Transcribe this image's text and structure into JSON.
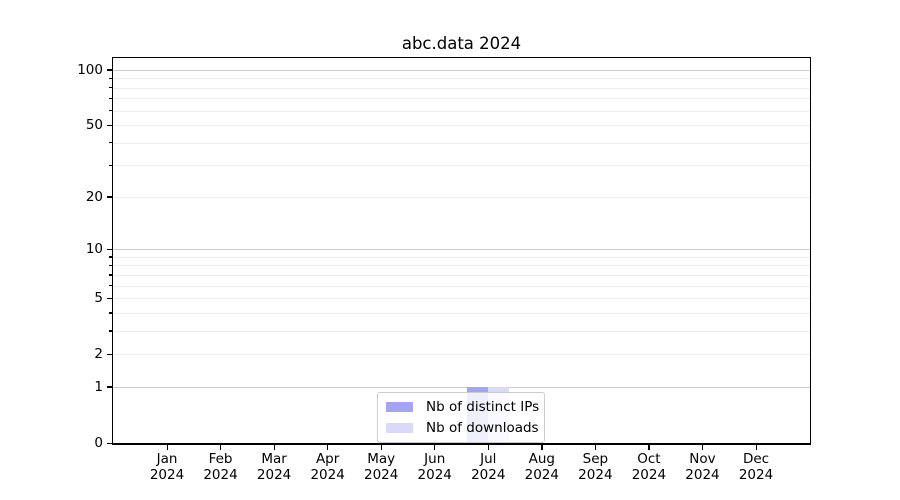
{
  "chart_data": {
    "type": "bar",
    "title": "abc.data 2024",
    "categories": [
      "Jan",
      "Feb",
      "Mar",
      "Apr",
      "May",
      "Jun",
      "Jul",
      "Aug",
      "Sep",
      "Oct",
      "Nov",
      "Dec"
    ],
    "year": "2024",
    "series": [
      {
        "name": "Nb of distinct IPs",
        "color": "#a5a5ef",
        "values": [
          0,
          0,
          0,
          0,
          0,
          0,
          1,
          0,
          0,
          0,
          0,
          0
        ]
      },
      {
        "name": "Nb of downloads",
        "color": "#dadaf8",
        "values": [
          0,
          0,
          0,
          0,
          0,
          0,
          1,
          0,
          0,
          0,
          0,
          0
        ]
      }
    ],
    "xlabel": "",
    "ylabel": "",
    "yscale": "log1p",
    "ylim": [
      0,
      116
    ],
    "yticks": [
      0,
      1,
      2,
      5,
      10,
      20,
      50,
      100
    ],
    "yticks_minor": [
      3,
      4,
      6,
      7,
      8,
      9,
      30,
      40,
      60,
      70,
      80,
      90
    ],
    "gridlines_major": [
      1,
      10,
      100
    ],
    "gridlines_minor": [
      2,
      3,
      4,
      5,
      6,
      7,
      8,
      9,
      20,
      30,
      40,
      50,
      60,
      70,
      80,
      90
    ],
    "grid": true,
    "legend_position": "lower center",
    "style": {
      "grid_major_color": "#cccccc",
      "grid_minor_color": "#ededed",
      "axis_color": "#000000",
      "text_color": "#000000",
      "background": "#ffffff"
    }
  }
}
